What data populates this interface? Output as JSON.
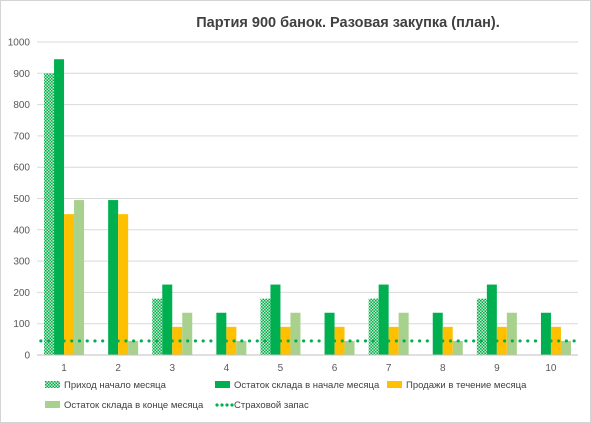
{
  "chart_data": {
    "type": "bar",
    "title": "Партия 900 банок. Разовая закупка (план).",
    "categories": [
      "1",
      "2",
      "3",
      "4",
      "5",
      "6",
      "7",
      "8",
      "9",
      "10"
    ],
    "ylim": [
      0,
      1000
    ],
    "yticks": [
      0,
      100,
      200,
      300,
      400,
      500,
      600,
      700,
      800,
      900,
      1000
    ],
    "grid": true,
    "legend_position": "bottom",
    "series": [
      {
        "name": "Приход начало месяца",
        "kind": "bar",
        "pattern": "checker",
        "color": "#00b050",
        "values": [
          900,
          0,
          180,
          0,
          180,
          0,
          180,
          0,
          180,
          0
        ]
      },
      {
        "name": "Остаток склада в начале месяца",
        "kind": "bar",
        "color": "#00b050",
        "values": [
          945,
          495,
          225,
          135,
          225,
          135,
          225,
          135,
          225,
          135
        ]
      },
      {
        "name": "Продажи в течение месяца",
        "kind": "bar",
        "color": "#ffc000",
        "values": [
          450,
          450,
          90,
          90,
          90,
          90,
          90,
          90,
          90,
          90
        ]
      },
      {
        "name": "Остаток склада в конце месяца",
        "kind": "bar",
        "color": "#a9d18e",
        "values": [
          495,
          45,
          135,
          45,
          135,
          45,
          135,
          45,
          135,
          45
        ]
      },
      {
        "name": "Страховой запас",
        "kind": "line",
        "style": "dotted",
        "color": "#00b050",
        "values": [
          45,
          45,
          45,
          45,
          45,
          45,
          45,
          45,
          45,
          45
        ]
      }
    ]
  }
}
